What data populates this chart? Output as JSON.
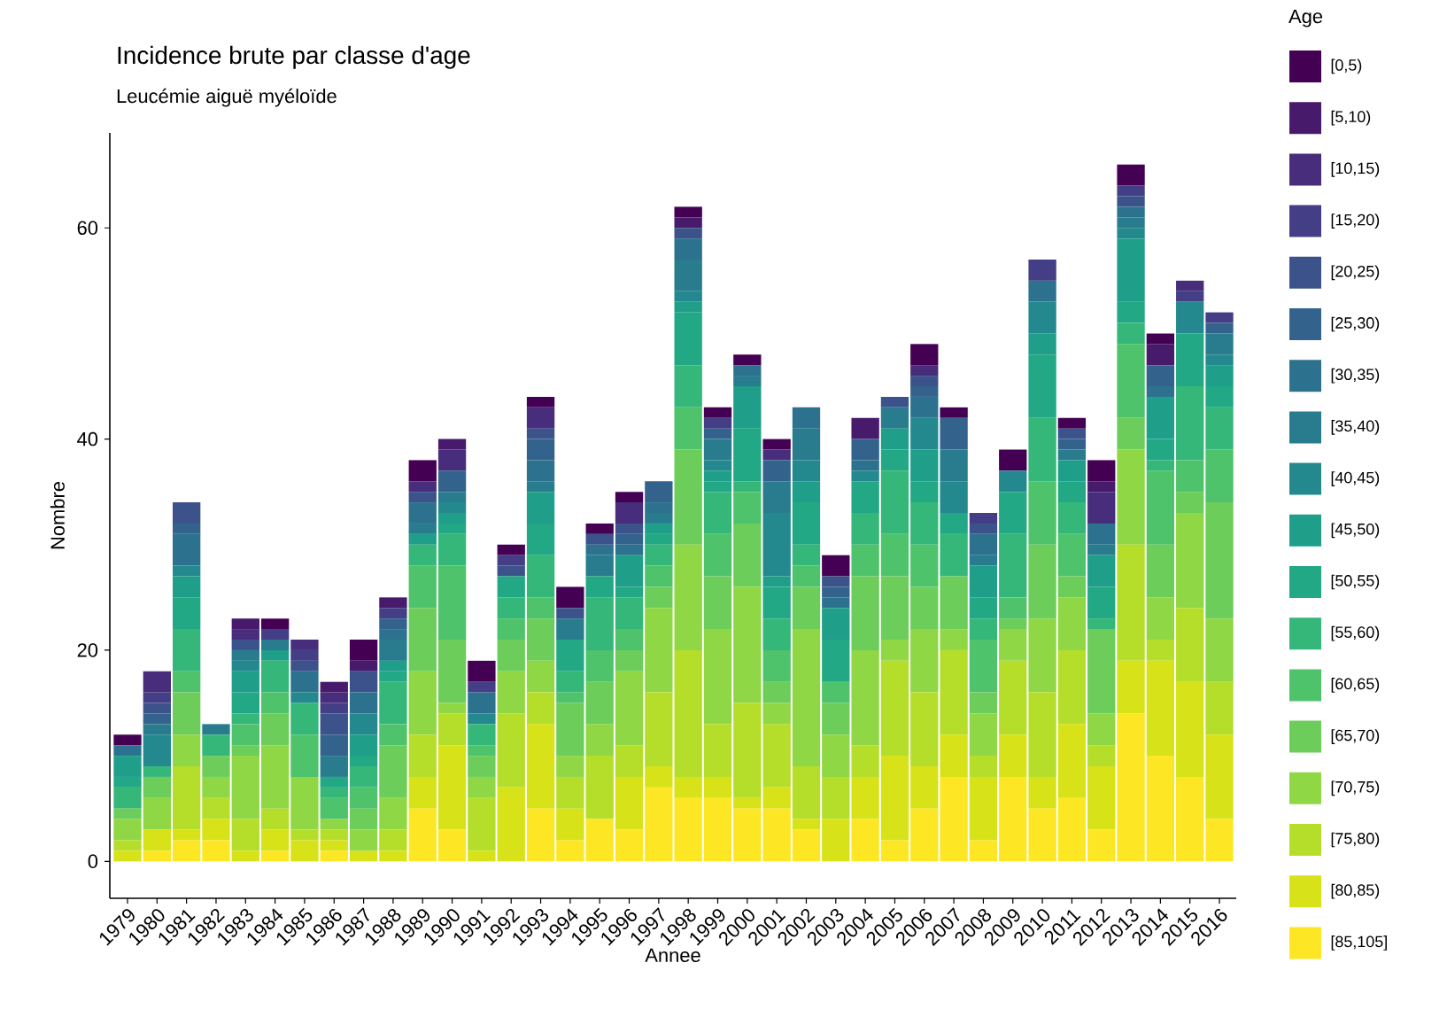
{
  "chart_data": {
    "type": "bar",
    "title": "Incidence brute par classe d'age",
    "subtitle": "Leucémie aiguë myéloïde",
    "xlabel": "Annee",
    "ylabel": "Nombre",
    "legend_title": "Age",
    "legend": "right",
    "stacked": true,
    "categories": [
      "1979",
      "1980",
      "1981",
      "1982",
      "1983",
      "1984",
      "1985",
      "1986",
      "1987",
      "1988",
      "1989",
      "1990",
      "1991",
      "1992",
      "1993",
      "1994",
      "1995",
      "1996",
      "1997",
      "1998",
      "1999",
      "2000",
      "2001",
      "2002",
      "2003",
      "2004",
      "2005",
      "2006",
      "2007",
      "2008",
      "2009",
      "2010",
      "2011",
      "2012",
      "2013",
      "2014",
      "2015",
      "2016"
    ],
    "ylim": [
      -3.5,
      69
    ],
    "yticks": [
      0,
      20,
      40,
      60
    ],
    "series": [
      {
        "name": "[85,105]",
        "color": "#fde725",
        "values": [
          0,
          1,
          2,
          2,
          0,
          1,
          0,
          1,
          0,
          0,
          5,
          3,
          0,
          0,
          5,
          2,
          4,
          3,
          7,
          6,
          6,
          5,
          5,
          3,
          0,
          4,
          2,
          5,
          8,
          2,
          8,
          5,
          6,
          3,
          14,
          10,
          8,
          4
        ]
      },
      {
        "name": "[80,85)",
        "color": "#d8e219",
        "values": [
          1,
          2,
          1,
          2,
          1,
          2,
          2,
          1,
          1,
          1,
          3,
          8,
          1,
          7,
          8,
          3,
          0,
          5,
          2,
          2,
          2,
          1,
          2,
          1,
          4,
          4,
          8,
          4,
          4,
          6,
          4,
          3,
          7,
          6,
          5,
          9,
          9,
          8
        ]
      },
      {
        "name": "[75,80)",
        "color": "#b5de2b",
        "values": [
          1,
          0,
          6,
          2,
          3,
          2,
          1,
          1,
          0,
          2,
          4,
          3,
          5,
          7,
          3,
          3,
          6,
          3,
          7,
          12,
          5,
          9,
          6,
          5,
          4,
          3,
          9,
          7,
          8,
          2,
          7,
          8,
          7,
          2,
          11,
          2,
          7,
          5
        ]
      },
      {
        "name": "[70,75)",
        "color": "#8fd744",
        "values": [
          2,
          3,
          3,
          2,
          6,
          6,
          5,
          1,
          2,
          3,
          6,
          1,
          2,
          4,
          3,
          2,
          3,
          7,
          8,
          10,
          9,
          11,
          2,
          13,
          4,
          9,
          2,
          6,
          2,
          4,
          3,
          7,
          5,
          3,
          9,
          4,
          9,
          6
        ]
      },
      {
        "name": "[65,70)",
        "color": "#6ccd5a",
        "values": [
          1,
          2,
          4,
          2,
          1,
          3,
          0,
          0,
          2,
          5,
          6,
          6,
          2,
          3,
          4,
          5,
          4,
          2,
          2,
          9,
          5,
          6,
          2,
          4,
          3,
          7,
          6,
          4,
          5,
          2,
          1,
          7,
          2,
          8,
          3,
          5,
          2,
          11
        ]
      },
      {
        "name": "[60,65)",
        "color": "#4ec36b",
        "values": [
          0,
          0,
          2,
          0,
          2,
          2,
          4,
          2,
          2,
          2,
          4,
          7,
          1,
          2,
          2,
          1,
          3,
          2,
          2,
          4,
          4,
          3,
          3,
          2,
          2,
          3,
          4,
          4,
          0,
          5,
          2,
          6,
          4,
          0,
          7,
          7,
          3,
          5
        ]
      },
      {
        "name": "[55,60)",
        "color": "#35b779",
        "values": [
          2,
          1,
          4,
          2,
          1,
          3,
          3,
          1,
          2,
          4,
          2,
          3,
          2,
          2,
          4,
          2,
          5,
          3,
          2,
          4,
          4,
          1,
          3,
          2,
          0,
          3,
          6,
          4,
          4,
          2,
          6,
          6,
          3,
          1,
          2,
          1,
          7,
          4
        ]
      },
      {
        "name": "[50,55)",
        "color": "#22a884",
        "values": [
          1,
          0,
          3,
          0,
          2,
          0,
          0,
          1,
          1,
          1,
          0,
          1,
          0,
          2,
          3,
          3,
          2,
          1,
          1,
          5,
          1,
          5,
          3,
          4,
          4,
          3,
          2,
          2,
          2,
          2,
          4,
          6,
          2,
          3,
          2,
          2,
          5,
          2
        ]
      },
      {
        "name": "[45,50)",
        "color": "#1f9e89",
        "values": [
          2,
          0,
          2,
          0,
          2,
          1,
          0,
          0,
          2,
          1,
          1,
          1,
          0,
          0,
          3,
          0,
          0,
          3,
          1,
          1,
          1,
          4,
          1,
          2,
          3,
          0,
          2,
          3,
          0,
          3,
          0,
          2,
          2,
          3,
          6,
          4,
          0,
          2
        ]
      },
      {
        "name": "[40,45)",
        "color": "#23898e",
        "values": [
          0,
          3,
          1,
          0,
          1,
          0,
          1,
          0,
          2,
          0,
          0,
          1,
          1,
          0,
          0,
          0,
          0,
          0,
          0,
          1,
          1,
          0,
          6,
          2,
          0,
          1,
          0,
          3,
          3,
          0,
          2,
          3,
          0,
          0,
          1,
          0,
          3,
          1
        ]
      },
      {
        "name": "[35,40)",
        "color": "#287c8e",
        "values": [
          0,
          1,
          0,
          1,
          1,
          1,
          0,
          2,
          0,
          2,
          1,
          1,
          0,
          0,
          1,
          2,
          2,
          0,
          1,
          3,
          2,
          1,
          3,
          3,
          0,
          0,
          2,
          0,
          3,
          1,
          0,
          0,
          1,
          1,
          1,
          0,
          0,
          2
        ]
      },
      {
        "name": "[30,35)",
        "color": "#2c728e",
        "values": [
          1,
          0,
          3,
          0,
          0,
          0,
          2,
          0,
          2,
          1,
          2,
          0,
          2,
          0,
          2,
          0,
          1,
          1,
          1,
          2,
          0,
          1,
          0,
          2,
          1,
          1,
          0,
          2,
          0,
          2,
          0,
          2,
          0,
          2,
          1,
          1,
          0,
          0
        ]
      },
      {
        "name": "[25,30)",
        "color": "#33638d",
        "values": [
          0,
          1,
          1,
          0,
          0,
          0,
          0,
          2,
          0,
          1,
          0,
          2,
          0,
          0,
          2,
          0,
          0,
          1,
          2,
          0,
          1,
          0,
          2,
          0,
          1,
          2,
          0,
          1,
          3,
          0,
          0,
          0,
          1,
          0,
          0,
          2,
          0,
          1
        ]
      },
      {
        "name": "[20,25)",
        "color": "#3b528b",
        "values": [
          0,
          1,
          2,
          0,
          1,
          0,
          1,
          2,
          2,
          0,
          1,
          0,
          0,
          1,
          1,
          1,
          1,
          1,
          0,
          1,
          0,
          0,
          0,
          0,
          1,
          0,
          1,
          1,
          0,
          1,
          0,
          0,
          1,
          0,
          1,
          0,
          0,
          0
        ]
      },
      {
        "name": "[15,20)",
        "color": "#433e85",
        "values": [
          0,
          1,
          0,
          0,
          0,
          1,
          1,
          1,
          0,
          1,
          0,
          0,
          1,
          1,
          0,
          0,
          0,
          0,
          0,
          0,
          1,
          0,
          0,
          0,
          0,
          0,
          0,
          0,
          0,
          1,
          0,
          2,
          0,
          0,
          1,
          0,
          1,
          1
        ]
      },
      {
        "name": "[10,15)",
        "color": "#472d7b",
        "values": [
          0,
          2,
          0,
          0,
          1,
          0,
          1,
          1,
          0,
          0,
          1,
          2,
          0,
          0,
          2,
          0,
          0,
          2,
          0,
          0,
          0,
          0,
          1,
          0,
          0,
          0,
          0,
          1,
          0,
          0,
          0,
          0,
          0,
          3,
          0,
          0,
          1,
          0
        ]
      },
      {
        "name": "[5,10)",
        "color": "#481a6c",
        "values": [
          0,
          0,
          0,
          0,
          1,
          0,
          0,
          1,
          1,
          1,
          0,
          1,
          0,
          0,
          0,
          0,
          0,
          0,
          0,
          1,
          0,
          0,
          0,
          0,
          0,
          2,
          0,
          0,
          0,
          0,
          0,
          0,
          0,
          1,
          0,
          2,
          0,
          0
        ]
      },
      {
        "name": "[0,5)",
        "color": "#440154",
        "values": [
          1,
          0,
          0,
          0,
          0,
          1,
          0,
          0,
          2,
          0,
          2,
          0,
          2,
          1,
          1,
          2,
          1,
          1,
          0,
          1,
          1,
          1,
          1,
          0,
          2,
          0,
          0,
          2,
          1,
          0,
          2,
          0,
          1,
          2,
          2,
          1,
          0,
          0
        ]
      }
    ]
  }
}
